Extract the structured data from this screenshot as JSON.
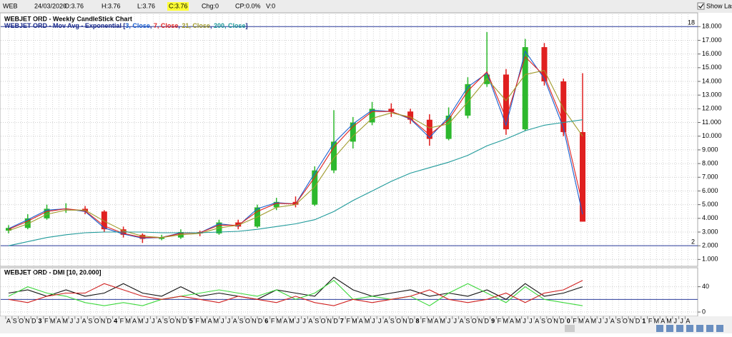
{
  "header": {
    "symbol": "WEB",
    "date": "24/03/2020",
    "fields": [
      "O:3.76",
      "H:3.76",
      "L:3.76",
      "C:3.76",
      "Chg:0",
      "CP:0.0%",
      "V:0"
    ],
    "highlight": 3,
    "show_last": "Show Last"
  },
  "chart_data": [
    {
      "type": "candlestick",
      "title": "WEBJET ORD - Weekly CandleStick Chart",
      "ma_title": {
        "prefix": "WEBJET ORD - Mov Avg - Exponential [",
        "separator": ", ",
        "suffix": "]"
      },
      "up_color": "#2db82d",
      "down_color": "#e02020",
      "open": [
        3.1,
        3.3,
        4.0,
        4.7,
        4.7,
        4.5,
        3.2,
        2.8,
        2.5,
        2.6,
        3.0,
        2.9,
        3.7,
        3.4,
        4.8,
        5.2,
        5.0,
        7.5,
        9.6,
        11.0,
        12.0,
        11.8,
        11.2,
        9.8,
        11.5,
        13.8,
        14.5,
        10.5,
        16.5,
        14.0,
        10.3
      ],
      "high": [
        3.5,
        4.3,
        5.0,
        5.1,
        4.9,
        4.6,
        3.4,
        2.9,
        2.8,
        3.2,
        3.1,
        3.9,
        3.9,
        5.0,
        5.5,
        5.6,
        7.8,
        11.9,
        11.4,
        12.5,
        12.4,
        12.0,
        11.6,
        12.1,
        14.3,
        17.6,
        14.9,
        17.1,
        16.8,
        14.2,
        14.6
      ],
      "low": [
        2.9,
        3.2,
        3.9,
        4.4,
        4.3,
        3.0,
        2.6,
        2.2,
        2.4,
        2.5,
        2.7,
        2.8,
        3.2,
        3.3,
        4.6,
        4.8,
        4.9,
        7.3,
        9.1,
        10.8,
        11.4,
        10.9,
        9.3,
        9.7,
        11.3,
        13.6,
        10.1,
        10.4,
        13.7,
        10.0,
        3.76
      ],
      "close": [
        3.3,
        4.0,
        4.7,
        4.7,
        4.5,
        3.2,
        2.8,
        2.5,
        2.6,
        3.0,
        2.9,
        3.7,
        3.4,
        4.8,
        5.2,
        5.0,
        7.5,
        9.6,
        11.0,
        12.0,
        11.8,
        11.2,
        9.8,
        11.5,
        13.8,
        14.5,
        10.5,
        16.5,
        14.0,
        10.3,
        3.76
      ],
      "series": [
        {
          "name": "3, Close",
          "color": "#1a5fd0",
          "values": [
            3.25,
            3.9,
            4.6,
            4.7,
            4.5,
            3.3,
            2.85,
            2.55,
            2.6,
            2.95,
            2.95,
            3.6,
            3.45,
            4.7,
            5.15,
            5.05,
            7.3,
            9.5,
            10.9,
            11.9,
            11.8,
            11.25,
            9.9,
            11.4,
            13.6,
            14.6,
            10.8,
            16.2,
            14.2,
            10.6,
            4.3
          ]
        },
        {
          "name": "7, Close",
          "color": "#e02020",
          "values": [
            3.2,
            3.8,
            4.5,
            4.7,
            4.55,
            3.45,
            2.9,
            2.6,
            2.6,
            2.9,
            2.95,
            3.5,
            3.5,
            4.5,
            5.1,
            5.05,
            7.0,
            9.2,
            10.7,
            11.8,
            11.8,
            11.3,
            10.1,
            11.2,
            13.3,
            14.7,
            11.3,
            15.8,
            14.4,
            11.0,
            5.0
          ]
        },
        {
          "name": "21, Close",
          "color": "#a09a2a",
          "values": [
            3.1,
            3.6,
            4.3,
            4.6,
            4.6,
            3.8,
            3.1,
            2.7,
            2.6,
            2.8,
            2.9,
            3.3,
            3.5,
            4.1,
            4.8,
            5.0,
            6.3,
            8.4,
            10.0,
            11.3,
            11.7,
            11.4,
            10.6,
            10.9,
            12.5,
            14.2,
            12.6,
            14.5,
            14.8,
            12.0,
            10.0
          ]
        },
        {
          "name": "200, Close",
          "color": "#1f9a9a",
          "values": [
            2.0,
            2.3,
            2.6,
            2.8,
            2.95,
            3.0,
            3.0,
            3.0,
            2.95,
            2.95,
            2.95,
            3.0,
            3.05,
            3.2,
            3.4,
            3.6,
            3.9,
            4.5,
            5.3,
            6.0,
            6.7,
            7.3,
            7.7,
            8.1,
            8.6,
            9.3,
            9.8,
            10.4,
            10.8,
            11.0,
            11.2
          ]
        }
      ],
      "ylim": [
        0.55,
        18.9
      ],
      "yticks": [
        {
          "value": 1,
          "label": "1.000"
        },
        {
          "value": 2,
          "label": "2.000"
        },
        {
          "value": 3,
          "label": "3.000"
        },
        {
          "value": 4,
          "label": "4.000"
        },
        {
          "value": 5,
          "label": "5.000"
        },
        {
          "value": 6,
          "label": "6.000"
        },
        {
          "value": 7,
          "label": "7.000"
        },
        {
          "value": 8,
          "label": "8.000"
        },
        {
          "value": 9,
          "label": "9.000"
        },
        {
          "value": 10,
          "label": "10.000"
        },
        {
          "value": 11,
          "label": "11.000"
        },
        {
          "value": 12,
          "label": "12.000"
        },
        {
          "value": 13,
          "label": "13.000"
        },
        {
          "value": 14,
          "label": "14.000"
        },
        {
          "value": 15,
          "label": "15.000"
        },
        {
          "value": 16,
          "label": "16.000"
        },
        {
          "value": 17,
          "label": "17.000"
        },
        {
          "value": 18,
          "label": "18.000"
        }
      ],
      "hlines": [
        18,
        2
      ],
      "hline_color": "#2a3a9a",
      "grid": true
    },
    {
      "type": "line",
      "title": "WEBJET ORD - DMI [10, 20.000]",
      "series": [
        {
          "name": "ADX",
          "color": "#111111",
          "values": [
            30,
            35,
            25,
            35,
            25,
            30,
            45,
            30,
            25,
            40,
            25,
            30,
            25,
            20,
            35,
            30,
            25,
            55,
            35,
            25,
            30,
            35,
            25,
            30,
            25,
            35,
            20,
            45,
            25,
            30,
            40
          ]
        },
        {
          "name": "+DI",
          "color": "#3cd83c",
          "values": [
            25,
            40,
            30,
            25,
            15,
            10,
            15,
            10,
            20,
            25,
            30,
            35,
            30,
            25,
            35,
            20,
            30,
            50,
            20,
            25,
            20,
            25,
            10,
            30,
            45,
            30,
            15,
            40,
            20,
            15,
            10
          ]
        },
        {
          "name": "-DI",
          "color": "#d02020",
          "values": [
            20,
            15,
            25,
            30,
            30,
            45,
            35,
            25,
            20,
            25,
            20,
            15,
            25,
            20,
            15,
            25,
            15,
            10,
            20,
            15,
            20,
            25,
            35,
            20,
            15,
            20,
            30,
            15,
            30,
            35,
            50
          ]
        }
      ],
      "ylim": [
        -5.6,
        68.9
      ],
      "yticks": [
        0,
        40
      ],
      "hlines": [
        20
      ],
      "hline_color": "#2a3a9a",
      "grid": true
    }
  ],
  "x_axis": {
    "categories": [
      "A",
      "S",
      "O",
      "N",
      "D",
      "3",
      "F",
      "M",
      "A",
      "M",
      "J",
      "J",
      "A",
      "S",
      "O",
      "N",
      "D",
      "4",
      "F",
      "M",
      "A",
      "M",
      "J",
      "J",
      "A",
      "S",
      "O",
      "N",
      "D",
      "5",
      "F",
      "M",
      "A",
      "M",
      "J",
      "J",
      "A",
      "S",
      "O",
      "N",
      "D",
      "6",
      "F",
      "M",
      "A",
      "M",
      "J",
      "J",
      "A",
      "S",
      "O",
      "N",
      "D",
      "7",
      "F",
      "M",
      "A",
      "M",
      "J",
      "J",
      "A",
      "S",
      "O",
      "N",
      "D",
      "8",
      "F",
      "M",
      "A",
      "M",
      "J",
      "J",
      "A",
      "S",
      "O",
      "N",
      "D",
      "9",
      "F",
      "M",
      "A",
      "M",
      "J",
      "J",
      "A",
      "S",
      "O",
      "N",
      "D",
      "0",
      "F",
      "M",
      "A",
      "M",
      "J",
      "J",
      "A",
      "S",
      "O",
      "N",
      "D",
      "1",
      "F",
      "M",
      "A",
      "M",
      "J",
      "J",
      "A"
    ]
  }
}
